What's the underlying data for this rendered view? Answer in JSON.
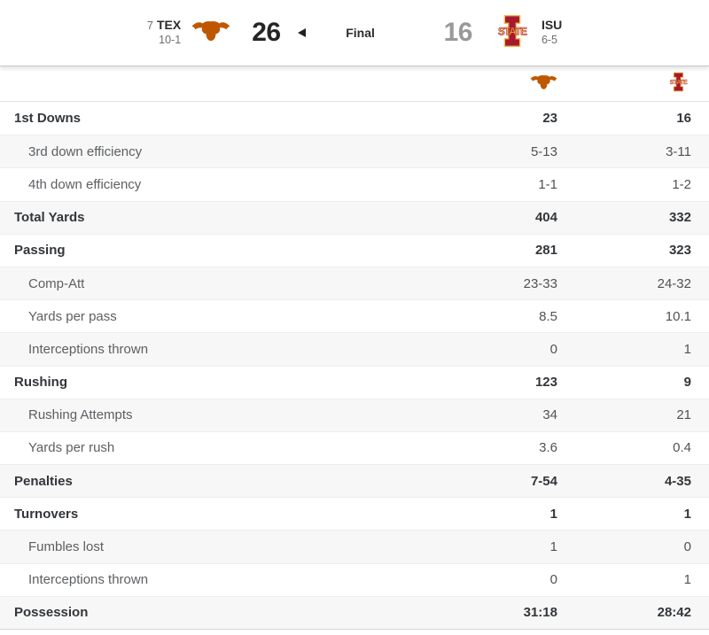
{
  "scoreboard": {
    "status": "Final",
    "winner": "away",
    "away": {
      "rank": "7",
      "abbrev": "TEX",
      "record": "10-1",
      "score": "26",
      "team": "Texas Longhorns"
    },
    "home": {
      "abbrev": "ISU",
      "record": "6-5",
      "score": "16",
      "team": "Iowa State Cyclones"
    }
  },
  "colors": {
    "texas_orange": "#BF5700",
    "isu_cardinal": "#A71930",
    "isu_gold": "#F1BE48",
    "alt_row_bg": "#f7f7f7",
    "winner_score": "#242526",
    "loser_score": "#98999b"
  },
  "stats": {
    "columns": [
      "stat",
      "TEX",
      "ISU"
    ],
    "rows": [
      {
        "label": "1st Downs",
        "away": "23",
        "home": "16",
        "emphasis": true
      },
      {
        "label": "3rd down efficiency",
        "away": "5-13",
        "home": "3-11",
        "emphasis": false
      },
      {
        "label": "4th down efficiency",
        "away": "1-1",
        "home": "1-2",
        "emphasis": false
      },
      {
        "label": "Total Yards",
        "away": "404",
        "home": "332",
        "emphasis": true
      },
      {
        "label": "Passing",
        "away": "281",
        "home": "323",
        "emphasis": true
      },
      {
        "label": "Comp-Att",
        "away": "23-33",
        "home": "24-32",
        "emphasis": false
      },
      {
        "label": "Yards per pass",
        "away": "8.5",
        "home": "10.1",
        "emphasis": false
      },
      {
        "label": "Interceptions thrown",
        "away": "0",
        "home": "1",
        "emphasis": false
      },
      {
        "label": "Rushing",
        "away": "123",
        "home": "9",
        "emphasis": true
      },
      {
        "label": "Rushing Attempts",
        "away": "34",
        "home": "21",
        "emphasis": false
      },
      {
        "label": "Yards per rush",
        "away": "3.6",
        "home": "0.4",
        "emphasis": false
      },
      {
        "label": "Penalties",
        "away": "7-54",
        "home": "4-35",
        "emphasis": true
      },
      {
        "label": "Turnovers",
        "away": "1",
        "home": "1",
        "emphasis": true
      },
      {
        "label": "Fumbles lost",
        "away": "1",
        "home": "0",
        "emphasis": false
      },
      {
        "label": "Interceptions thrown",
        "away": "0",
        "home": "1",
        "emphasis": false
      },
      {
        "label": "Possession",
        "away": "31:18",
        "home": "28:42",
        "emphasis": true
      }
    ]
  }
}
